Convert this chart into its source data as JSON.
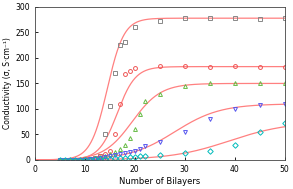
{
  "title": "",
  "xlabel": "Number of Bilayers",
  "ylabel": "Conductivity (σ, S·cm⁻¹)",
  "xlim": [
    0,
    50
  ],
  "ylim": [
    0,
    300
  ],
  "yticks": [
    0,
    50,
    100,
    150,
    200,
    250,
    300
  ],
  "xticks": [
    0,
    10,
    20,
    30,
    40,
    50
  ],
  "curve_color": "#FF8080",
  "series": [
    {
      "label": "series1_gray_square",
      "marker": "s",
      "marker_color": "#888888",
      "x_data": [
        5,
        6,
        7,
        8,
        9,
        10,
        11,
        12,
        13,
        14,
        15,
        16,
        17,
        18,
        20,
        25,
        30,
        35,
        40,
        45,
        50
      ],
      "y_data": [
        0,
        0,
        0,
        0,
        0,
        1,
        2,
        4,
        8,
        50,
        105,
        170,
        225,
        232,
        260,
        272,
        278,
        278,
        278,
        277,
        278
      ],
      "sigmoid": {
        "L": 278,
        "k": 0.6,
        "x0": 14.5
      }
    },
    {
      "label": "series2_red_circle",
      "marker": "o",
      "marker_color": "#EE5555",
      "x_data": [
        5,
        6,
        7,
        8,
        9,
        10,
        11,
        12,
        13,
        14,
        15,
        16,
        17,
        18,
        19,
        20,
        25,
        30,
        35,
        40,
        45,
        50
      ],
      "y_data": [
        0,
        0,
        0,
        0,
        0,
        1,
        2,
        4,
        7,
        12,
        18,
        50,
        110,
        168,
        175,
        180,
        184,
        184,
        183,
        184,
        183,
        183
      ],
      "sigmoid": {
        "L": 183,
        "k": 0.55,
        "x0": 16.5
      }
    },
    {
      "label": "series3_green_triangle",
      "marker": "^",
      "marker_color": "#66BB44",
      "x_data": [
        5,
        6,
        7,
        8,
        9,
        10,
        11,
        12,
        13,
        14,
        15,
        16,
        17,
        18,
        19,
        20,
        21,
        22,
        25,
        30,
        35,
        40,
        45,
        50
      ],
      "y_data": [
        0,
        0,
        0,
        0,
        0,
        1,
        2,
        3,
        5,
        8,
        12,
        16,
        22,
        30,
        42,
        60,
        90,
        115,
        130,
        145,
        150,
        150,
        150,
        150
      ],
      "sigmoid": {
        "L": 150,
        "k": 0.35,
        "x0": 19.5
      }
    },
    {
      "label": "series4_blue_invtriangle",
      "marker": "v",
      "marker_color": "#5555EE",
      "x_data": [
        5,
        6,
        7,
        8,
        9,
        10,
        11,
        12,
        13,
        14,
        15,
        16,
        17,
        18,
        19,
        20,
        21,
        22,
        25,
        30,
        35,
        40,
        45,
        50
      ],
      "y_data": [
        0,
        0,
        0,
        0,
        0,
        0,
        1,
        2,
        3,
        5,
        7,
        9,
        11,
        13,
        15,
        18,
        22,
        27,
        35,
        55,
        80,
        100,
        108,
        110
      ],
      "sigmoid": {
        "L": 110,
        "k": 0.22,
        "x0": 28
      }
    },
    {
      "label": "series5_cyan_diamond",
      "marker": "D",
      "marker_color": "#00BBBB",
      "x_data": [
        5,
        6,
        7,
        8,
        9,
        10,
        11,
        12,
        13,
        14,
        15,
        16,
        17,
        18,
        19,
        20,
        21,
        22,
        25,
        30,
        35,
        40,
        45,
        50
      ],
      "y_data": [
        0,
        0,
        0,
        0,
        0,
        0,
        0,
        1,
        1,
        2,
        2,
        3,
        3,
        4,
        5,
        6,
        7,
        8,
        10,
        14,
        18,
        30,
        55,
        72
      ],
      "sigmoid": {
        "L": 75,
        "k": 0.17,
        "x0": 39
      }
    }
  ]
}
